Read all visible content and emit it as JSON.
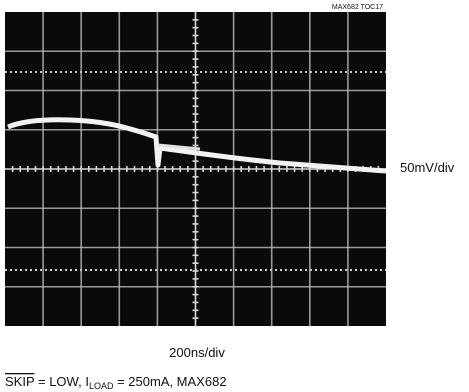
{
  "figure": {
    "tag": "MAX682 TOC17",
    "y_scale": "50mV/div",
    "x_scale": "200ns/div",
    "caption": {
      "signal": "SKIP",
      "text1": " = LOW,  I",
      "subscript": "LOAD",
      "text2": " = 250mA, MAX682"
    }
  }
}
